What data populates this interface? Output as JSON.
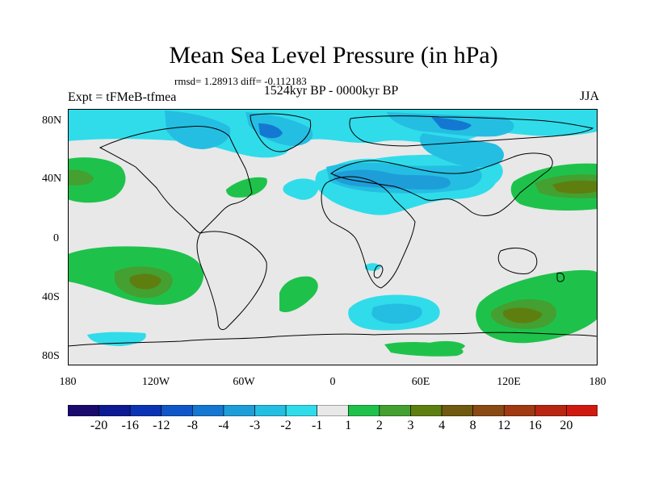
{
  "title": "Mean Sea Level Pressure (in hPa)",
  "stats": "rmsd= 1.28913 diff= -0.112183",
  "period": "1524kyr BP - 0000kyr BP",
  "experiment": "Expt = tFMeB-tfmea",
  "season": "JJA",
  "lat_labels": [
    "80N",
    "40N",
    "0",
    "40S",
    "80S"
  ],
  "lon_labels": [
    "180",
    "120W",
    "60W",
    "0",
    "60E",
    "120E",
    "180"
  ],
  "colorbar": {
    "colors": [
      "#1a0a6e",
      "#0d1a94",
      "#0a34b4",
      "#0f56c8",
      "#1478d2",
      "#1e9ed8",
      "#24bee2",
      "#30dcea",
      "#e8e8e8",
      "#1ec24b",
      "#44a030",
      "#5e7f10",
      "#705a10",
      "#8a4a14",
      "#a03a12",
      "#b82612",
      "#d01a10"
    ],
    "labels": [
      "-20",
      "-16",
      "-12",
      "-8",
      "-4",
      "-3",
      "-2",
      "-1",
      "1",
      "2",
      "3",
      "4",
      "8",
      "12",
      "16",
      "20"
    ]
  }
}
